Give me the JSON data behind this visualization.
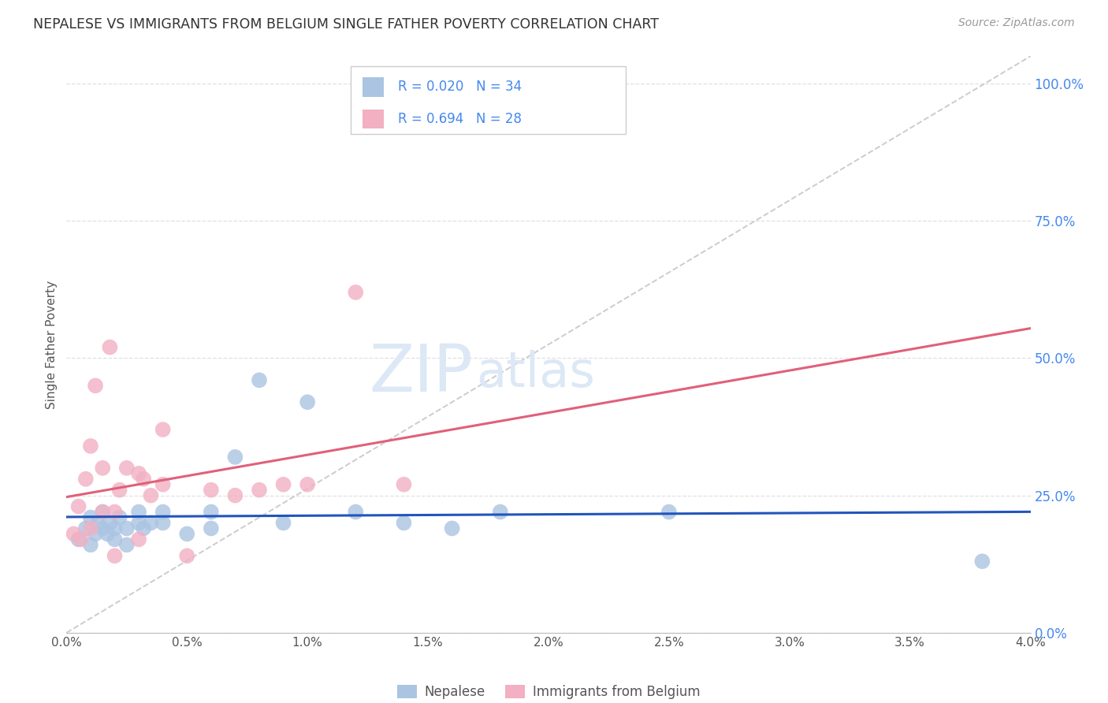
{
  "title": "NEPALESE VS IMMIGRANTS FROM BELGIUM SINGLE FATHER POVERTY CORRELATION CHART",
  "source": "Source: ZipAtlas.com",
  "xlabel_vals": [
    0.0,
    0.005,
    0.01,
    0.015,
    0.02,
    0.025,
    0.03,
    0.035,
    0.04
  ],
  "ylabel_vals": [
    0.0,
    0.25,
    0.5,
    0.75,
    1.0
  ],
  "ylabel_label": "Single Father Poverty",
  "legend_labels": [
    "Nepalese",
    "Immigrants from Belgium"
  ],
  "nepalese_R": "0.020",
  "nepalese_N": "34",
  "belgium_R": "0.694",
  "belgium_N": "28",
  "nepalese_color": "#aac4e2",
  "nepalese_line_color": "#2255bb",
  "belgium_color": "#f2b0c2",
  "belgium_line_color": "#e0607a",
  "diagonal_color": "#cccccc",
  "grid_color": "#e0e0e0",
  "title_color": "#333333",
  "right_axis_color": "#4488ee",
  "watermark_color": "#dce8f5",
  "nepalese_x": [
    0.0005,
    0.0008,
    0.001,
    0.001,
    0.0012,
    0.0013,
    0.0015,
    0.0015,
    0.0017,
    0.0018,
    0.002,
    0.002,
    0.0022,
    0.0025,
    0.0025,
    0.003,
    0.003,
    0.0032,
    0.0035,
    0.004,
    0.004,
    0.005,
    0.006,
    0.006,
    0.007,
    0.008,
    0.009,
    0.01,
    0.012,
    0.014,
    0.016,
    0.018,
    0.025,
    0.038
  ],
  "nepalese_y": [
    0.17,
    0.19,
    0.16,
    0.21,
    0.18,
    0.2,
    0.19,
    0.22,
    0.18,
    0.2,
    0.17,
    0.19,
    0.21,
    0.19,
    0.16,
    0.2,
    0.22,
    0.19,
    0.2,
    0.22,
    0.2,
    0.18,
    0.22,
    0.19,
    0.32,
    0.46,
    0.2,
    0.42,
    0.22,
    0.2,
    0.19,
    0.22,
    0.22,
    0.13
  ],
  "belgium_x": [
    0.0003,
    0.0005,
    0.0006,
    0.0008,
    0.001,
    0.001,
    0.0012,
    0.0015,
    0.0015,
    0.0018,
    0.002,
    0.002,
    0.0022,
    0.0025,
    0.003,
    0.003,
    0.0032,
    0.0035,
    0.004,
    0.004,
    0.005,
    0.006,
    0.007,
    0.008,
    0.009,
    0.01,
    0.012,
    0.014
  ],
  "belgium_y": [
    0.18,
    0.23,
    0.17,
    0.28,
    0.19,
    0.34,
    0.45,
    0.22,
    0.3,
    0.52,
    0.14,
    0.22,
    0.26,
    0.3,
    0.17,
    0.29,
    0.28,
    0.25,
    0.27,
    0.37,
    0.14,
    0.26,
    0.25,
    0.26,
    0.27,
    0.27,
    0.62,
    0.27
  ],
  "xlim": [
    0.0,
    0.04
  ],
  "ylim": [
    0.0,
    1.05
  ]
}
